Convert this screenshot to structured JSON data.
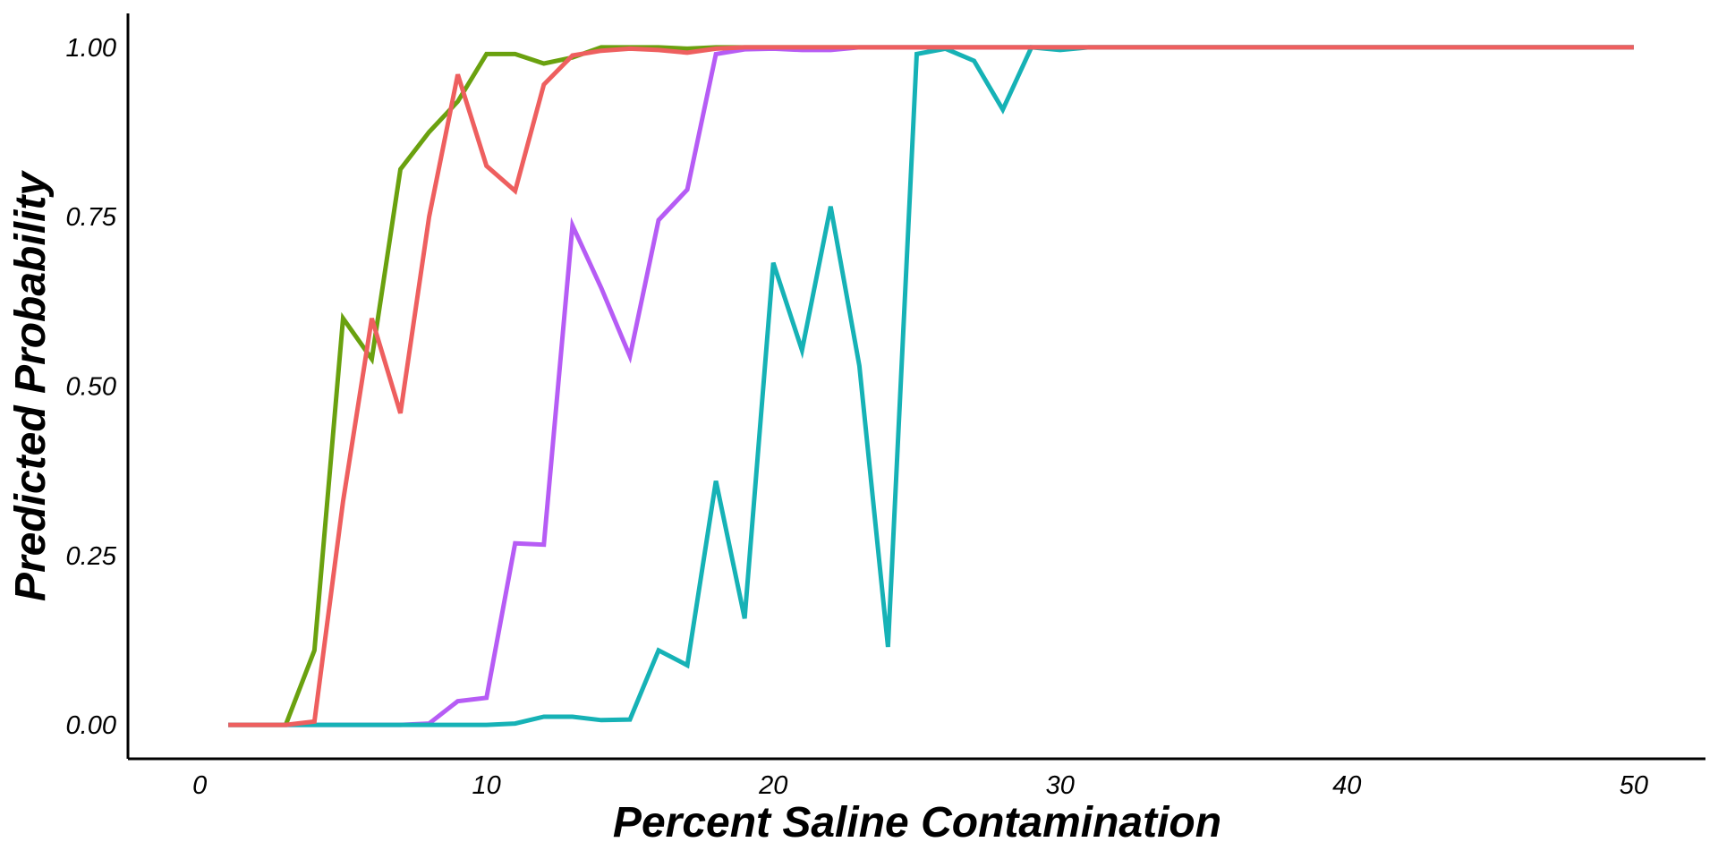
{
  "chart_data": {
    "type": "line",
    "title": "",
    "xlabel": "Percent Saline Contamination",
    "ylabel": "Predicted Probability",
    "xlim": [
      -2.5,
      52.5
    ],
    "ylim": [
      -0.05,
      1.05
    ],
    "xticks": [
      0,
      10,
      20,
      30,
      40,
      50
    ],
    "yticks": [
      0.0,
      0.25,
      0.5,
      0.75,
      1.0
    ],
    "xtick_labels": [
      "0",
      "10",
      "20",
      "30",
      "40",
      "50"
    ],
    "ytick_labels": [
      "0.00",
      "0.25",
      "0.50",
      "0.75",
      "1.00"
    ],
    "grid": false,
    "legend": "none",
    "x": [
      1,
      2,
      3,
      4,
      5,
      6,
      7,
      8,
      9,
      10,
      11,
      12,
      13,
      14,
      15,
      16,
      17,
      18,
      19,
      20,
      21,
      22,
      23,
      24,
      25,
      26,
      27,
      28,
      29,
      30,
      31,
      32,
      33,
      34,
      35,
      36,
      37,
      38,
      39,
      40,
      41,
      42,
      43,
      44,
      45,
      46,
      47,
      48,
      49,
      50
    ],
    "series": [
      {
        "color": "#6aa10f",
        "values": [
          0.0,
          0.0,
          0.0,
          0.11,
          0.6,
          0.54,
          0.82,
          0.875,
          0.92,
          0.99,
          0.99,
          0.976,
          0.985,
          1.0,
          1.0,
          1.0,
          0.998,
          1.0,
          1.0,
          1.0,
          1.0,
          1.0,
          1.0,
          1.0,
          1.0,
          1.0,
          1.0,
          1.0,
          1.0,
          1.0,
          1.0,
          1.0,
          1.0,
          1.0,
          1.0,
          1.0,
          1.0,
          1.0,
          1.0,
          1.0,
          1.0,
          1.0,
          1.0,
          1.0,
          1.0,
          1.0,
          1.0,
          1.0,
          1.0,
          1.0
        ]
      },
      {
        "color": "#b65cf5",
        "values": [
          0.0,
          0.0,
          0.0,
          0.0,
          0.0,
          0.0,
          0.0,
          0.002,
          0.035,
          0.04,
          0.268,
          0.266,
          0.737,
          0.645,
          0.544,
          0.745,
          0.79,
          0.99,
          0.997,
          0.998,
          0.996,
          0.996,
          1.0,
          1.0,
          1.0,
          1.0,
          1.0,
          1.0,
          1.0,
          1.0,
          1.0,
          1.0,
          1.0,
          1.0,
          1.0,
          1.0,
          1.0,
          1.0,
          1.0,
          1.0,
          1.0,
          1.0,
          1.0,
          1.0,
          1.0,
          1.0,
          1.0,
          1.0,
          1.0,
          1.0
        ]
      },
      {
        "color": "#16b2b6",
        "values": [
          0.0,
          0.0,
          0.0,
          0.0,
          0.0,
          0.0,
          0.0,
          0.0,
          0.0,
          0.0,
          0.002,
          0.012,
          0.012,
          0.007,
          0.008,
          0.11,
          0.088,
          0.36,
          0.157,
          0.682,
          0.553,
          0.765,
          0.53,
          0.115,
          0.99,
          0.998,
          0.98,
          0.908,
          1.0,
          0.996,
          1.0,
          1.0,
          1.0,
          1.0,
          1.0,
          1.0,
          1.0,
          1.0,
          1.0,
          1.0,
          1.0,
          1.0,
          1.0,
          1.0,
          1.0,
          1.0,
          1.0,
          1.0,
          1.0,
          1.0
        ]
      },
      {
        "color": "#ee5f5f",
        "values": [
          0.0,
          0.0,
          0.0,
          0.005,
          0.33,
          0.6,
          0.46,
          0.75,
          0.96,
          0.825,
          0.788,
          0.945,
          0.988,
          0.995,
          0.998,
          0.996,
          0.992,
          0.998,
          1.0,
          1.0,
          1.0,
          1.0,
          1.0,
          1.0,
          1.0,
          1.0,
          1.0,
          1.0,
          1.0,
          1.0,
          1.0,
          1.0,
          1.0,
          1.0,
          1.0,
          1.0,
          1.0,
          1.0,
          1.0,
          1.0,
          1.0,
          1.0,
          1.0,
          1.0,
          1.0,
          1.0,
          1.0,
          1.0,
          1.0,
          1.0
        ]
      }
    ]
  }
}
